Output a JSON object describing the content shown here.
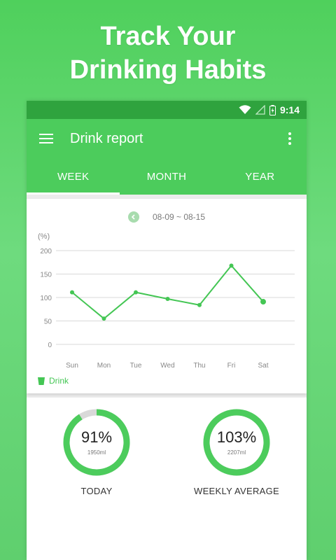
{
  "promo": {
    "line1": "Track Your",
    "line2": "Drinking Habits"
  },
  "statusbar": {
    "time": "9:14",
    "icons": [
      "wifi-icon",
      "signal-icon",
      "battery-icon"
    ]
  },
  "appbar": {
    "title": "Drink report",
    "menu_icon": "menu-icon",
    "more_icon": "more-vert-icon"
  },
  "tabs": [
    {
      "label": "WEEK",
      "selected": true
    },
    {
      "label": "MONTH",
      "selected": false
    },
    {
      "label": "YEAR",
      "selected": false
    }
  ],
  "report": {
    "date_range": "08-09 ~ 08-15",
    "prev_icon": "chevron-left-icon"
  },
  "chart_data": {
    "type": "line",
    "ylabel": "(%)",
    "ylim": [
      0,
      200
    ],
    "yticks": [
      200,
      150,
      100,
      50,
      0
    ],
    "categories": [
      "Sun",
      "Mon",
      "Tue",
      "Wed",
      "Thu",
      "Fri",
      "Sat"
    ],
    "series": [
      {
        "name": "Drink",
        "values": [
          111,
          55,
          111,
          97,
          84,
          168,
          91
        ]
      }
    ],
    "grid": true,
    "legend": "bottom-left",
    "color": "#44c654"
  },
  "stats": {
    "today": {
      "percent": "91%",
      "amount": "1950ml",
      "label": "TODAY",
      "fraction": 0.91
    },
    "weekly": {
      "percent": "103%",
      "amount": "2207ml",
      "label": "WEEKLY AVERAGE",
      "fraction": 1.0
    }
  },
  "colors": {
    "accent": "#4ccc5c",
    "statusbar": "#2fa33e",
    "ring_track": "#d9d9d9"
  }
}
